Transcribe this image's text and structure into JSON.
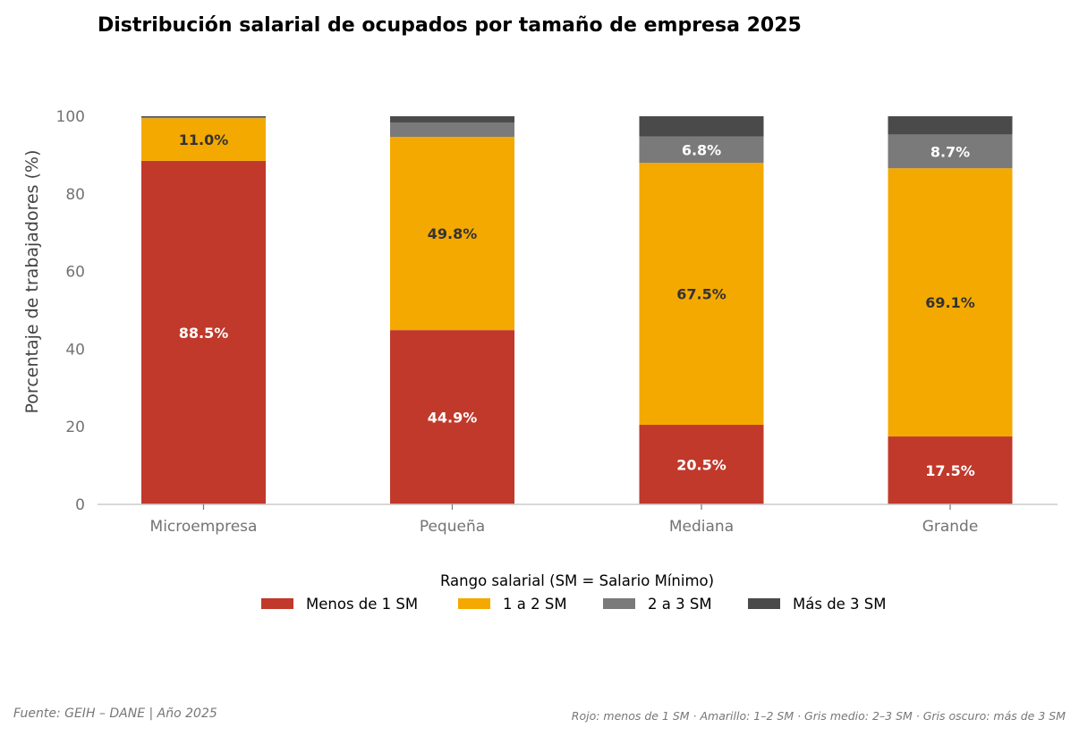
{
  "chart_data": {
    "type": "bar",
    "stacked": true,
    "title": "Distribución salarial de ocupados por tamaño de empresa 2025",
    "xlabel": "",
    "ylabel": "Porcentaje de trabajadores (%)",
    "ylim": [
      0,
      100
    ],
    "yticks": [
      0,
      20,
      40,
      60,
      80,
      100
    ],
    "grid": false,
    "categories": [
      "Microempresa",
      "Pequeña",
      "Mediana",
      "Grande"
    ],
    "series": [
      {
        "name": "Menos de 1 SM",
        "color": "#c0392b",
        "label_color": "#ffffff",
        "values": [
          88.5,
          44.9,
          20.5,
          17.5
        ],
        "labels": [
          "88.5%",
          "44.9%",
          "20.5%",
          "17.5%"
        ]
      },
      {
        "name": "1 a 2 SM",
        "color": "#f4a900",
        "label_color": "#333333",
        "values": [
          11.0,
          49.8,
          67.5,
          69.1
        ],
        "labels": [
          "11.0%",
          "49.8%",
          "67.5%",
          "69.1%"
        ]
      },
      {
        "name": "2 a 3 SM",
        "color": "#7a7a7a",
        "label_color": "#ffffff",
        "values": [
          0.2,
          3.7,
          6.8,
          8.7
        ],
        "labels": [
          "",
          "",
          "6.8%",
          "8.7%"
        ]
      },
      {
        "name": "Más de 3 SM",
        "color": "#4a4a4a",
        "label_color": "#ffffff",
        "values": [
          0.3,
          1.6,
          5.2,
          4.7
        ],
        "labels": [
          "",
          "",
          "",
          ""
        ]
      }
    ],
    "legend": {
      "title": "Rango salarial (SM = Salario Mínimo)",
      "position": "bottom-center"
    }
  },
  "footer": {
    "source": "Fuente: GEIH – DANE  |  Año 2025",
    "color_note": "Rojo: menos de 1 SM · Amarillo: 1–2 SM · Gris medio: 2–3 SM · Gris oscuro: más de 3 SM"
  }
}
